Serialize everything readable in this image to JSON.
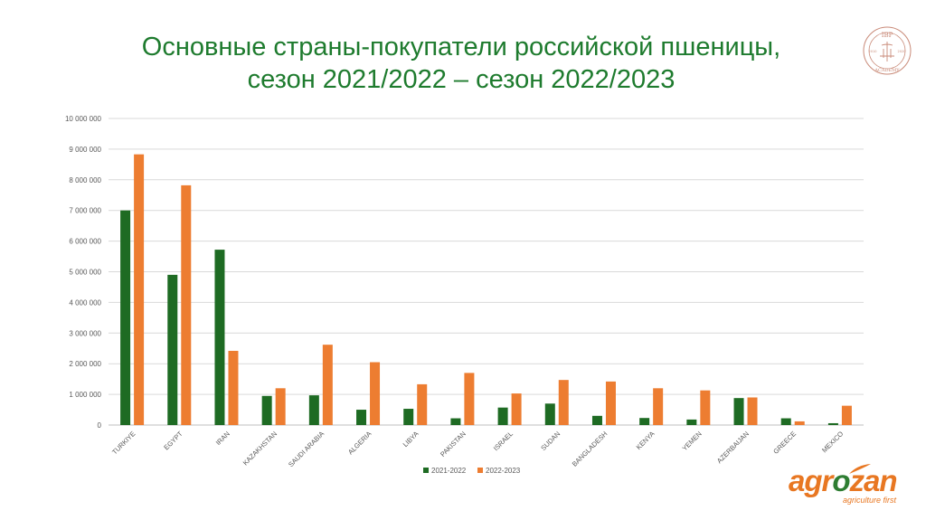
{
  "title": {
    "line1": "Основные страны-покупатели российской пшеницы,",
    "line2": "сезон 2021/2022 – сезон 2022/2023"
  },
  "colors": {
    "series1": "#1e6b23",
    "series2": "#ed7d31",
    "title": "#1e7b2e",
    "grid": "#d9d9d9"
  },
  "seal": {
    "top": "IBP",
    "bottom": "ACADEMY",
    "left": "2010",
    "right": "2020"
  },
  "logo": {
    "part1": "agr",
    "part2": "o",
    "part3": "zan",
    "tagline": "agriculture first"
  },
  "chart_data": {
    "type": "bar",
    "title": "Основные страны-покупатели российской пшеницы, сезон 2021/2022 – сезон 2022/2023",
    "xlabel": "",
    "ylabel": "",
    "ylim": [
      0,
      10000000
    ],
    "yticks": [
      0,
      1000000,
      2000000,
      3000000,
      4000000,
      5000000,
      6000000,
      7000000,
      8000000,
      9000000,
      10000000
    ],
    "ytick_labels": [
      "0",
      "1 000 000",
      "2 000 000",
      "3 000 000",
      "4 000 000",
      "5 000 000",
      "6 000 000",
      "7 000 000",
      "8 000 000",
      "9 000 000",
      "10 000 000"
    ],
    "grid": true,
    "legend": "bottom",
    "categories": [
      "TURKIYE",
      "EGYPT",
      "IRAN",
      "KAZAKHSTAN",
      "SAUDI ARABIA",
      "ALGERIA",
      "LIBYA",
      "PAKISTAN",
      "ISRAEL",
      "SUDAN",
      "BANGLADESH",
      "KENYA",
      "YEMEN",
      "AZERBAIJAN",
      "GREECE",
      "MEXICO"
    ],
    "series": [
      {
        "name": "2021-2022",
        "values": [
          7000000,
          4900000,
          5720000,
          950000,
          970000,
          500000,
          530000,
          220000,
          570000,
          700000,
          300000,
          230000,
          180000,
          880000,
          220000,
          60000
        ]
      },
      {
        "name": "2022-2023",
        "values": [
          8830000,
          7820000,
          2420000,
          1200000,
          2620000,
          2050000,
          1330000,
          1700000,
          1030000,
          1470000,
          1420000,
          1200000,
          1130000,
          900000,
          120000,
          630000
        ]
      }
    ]
  }
}
